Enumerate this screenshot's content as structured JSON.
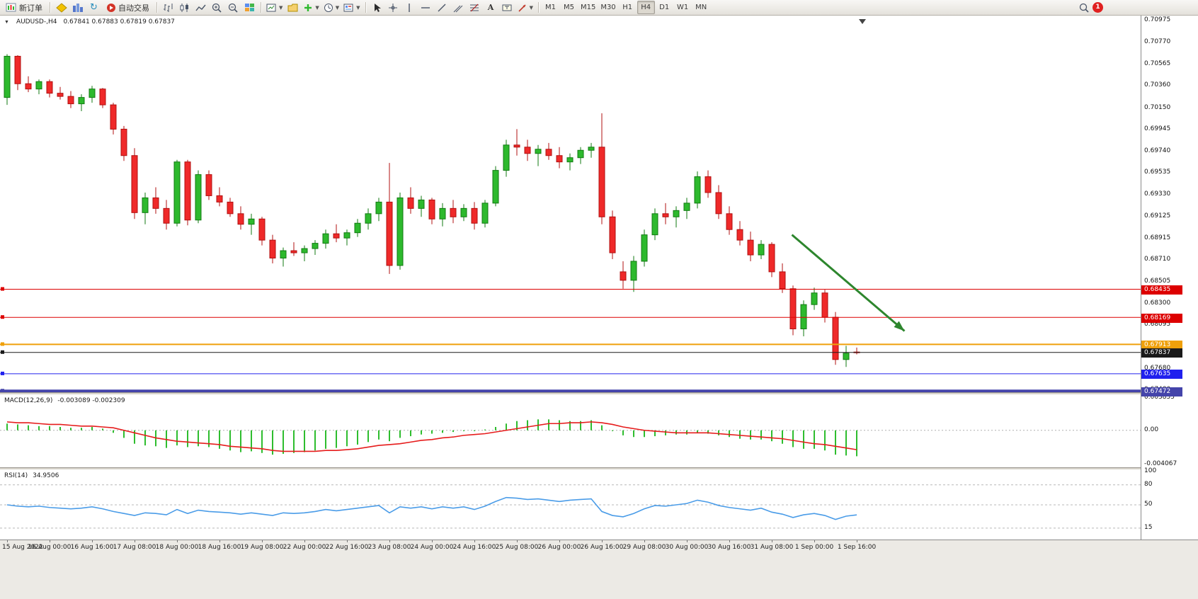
{
  "toolbar": {
    "new_order_label": "新订单",
    "autotrading_label": "自动交易",
    "timeframes": [
      "M1",
      "M5",
      "M15",
      "M30",
      "H1",
      "H4",
      "D1",
      "W1",
      "MN"
    ],
    "active_timeframe": "H4",
    "notification_count": "1"
  },
  "chart_window": {
    "symbol_period": "AUDUSD-,H4",
    "ohlc": "0.67841 0.67883 0.67819 0.67837",
    "macd_title": "MACD(12,26,9)",
    "macd_values": "-0.003089 -0.002309",
    "rsi_title": "RSI(14)",
    "rsi_value": "34.9506"
  },
  "chart_data": {
    "type": "candlestick",
    "symbol": "AUDUSD",
    "period": "H4",
    "x0": 10,
    "dx": 15,
    "label_every": 4,
    "ylim": [
      0.67467,
      0.70998
    ],
    "x_labels": [
      "15 Aug 2022",
      "16 Aug 00:00",
      "16 Aug 16:00",
      "17 Aug 08:00",
      "18 Aug 00:00",
      "18 Aug 16:00",
      "19 Aug 08:00",
      "22 Aug 00:00",
      "22 Aug 16:00",
      "23 Aug 08:00",
      "24 Aug 00:00",
      "24 Aug 16:00",
      "25 Aug 08:00",
      "26 Aug 00:00",
      "26 Aug 16:00",
      "29 Aug 08:00",
      "30 Aug 00:00",
      "30 Aug 16:00",
      "31 Aug 08:00",
      "1 Sep 00:00",
      "1 Sep 16:00"
    ],
    "price_ticks": [
      "0.70975",
      "0.70770",
      "0.70565",
      "0.70360",
      "0.70150",
      "0.69945",
      "0.69740",
      "0.69535",
      "0.69330",
      "0.69125",
      "0.68915",
      "0.68710",
      "0.68505",
      "0.68300",
      "0.68095",
      "0.67890",
      "0.67680",
      "0.67480"
    ],
    "candles": [
      [
        0.7025,
        0.7066,
        0.7018,
        0.7064
      ],
      [
        0.7064,
        0.7065,
        0.7032,
        0.7038
      ],
      [
        0.7038,
        0.7045,
        0.703,
        0.7033
      ],
      [
        0.7033,
        0.7042,
        0.7028,
        0.704
      ],
      [
        0.704,
        0.7042,
        0.7025,
        0.7029
      ],
      [
        0.7029,
        0.7035,
        0.7023,
        0.7026
      ],
      [
        0.7026,
        0.7031,
        0.7015,
        0.7019
      ],
      [
        0.7019,
        0.7028,
        0.7012,
        0.7025
      ],
      [
        0.7025,
        0.7036,
        0.702,
        0.7033
      ],
      [
        0.7033,
        0.7034,
        0.7015,
        0.7018
      ],
      [
        0.7018,
        0.702,
        0.699,
        0.6995
      ],
      [
        0.6995,
        0.6998,
        0.6965,
        0.697
      ],
      [
        0.697,
        0.6977,
        0.691,
        0.6916
      ],
      [
        0.6916,
        0.6935,
        0.6905,
        0.693
      ],
      [
        0.693,
        0.694,
        0.6915,
        0.692
      ],
      [
        0.692,
        0.6928,
        0.69,
        0.6906
      ],
      [
        0.6906,
        0.6966,
        0.6903,
        0.6964
      ],
      [
        0.6964,
        0.6966,
        0.6904,
        0.6909
      ],
      [
        0.6909,
        0.6956,
        0.6906,
        0.6952
      ],
      [
        0.6952,
        0.6956,
        0.6928,
        0.6932
      ],
      [
        0.6932,
        0.694,
        0.6922,
        0.6926
      ],
      [
        0.6926,
        0.693,
        0.6912,
        0.6915
      ],
      [
        0.6915,
        0.6922,
        0.69,
        0.6905
      ],
      [
        0.6905,
        0.6915,
        0.6895,
        0.691
      ],
      [
        0.691,
        0.6912,
        0.6885,
        0.689
      ],
      [
        0.689,
        0.6895,
        0.6868,
        0.6873
      ],
      [
        0.6873,
        0.6883,
        0.6865,
        0.688
      ],
      [
        0.688,
        0.6888,
        0.6875,
        0.6878
      ],
      [
        0.6878,
        0.6885,
        0.687,
        0.6882
      ],
      [
        0.6882,
        0.689,
        0.6876,
        0.6887
      ],
      [
        0.6887,
        0.69,
        0.6882,
        0.6896
      ],
      [
        0.6896,
        0.6905,
        0.6888,
        0.6892
      ],
      [
        0.6892,
        0.69,
        0.6885,
        0.6897
      ],
      [
        0.6897,
        0.691,
        0.6893,
        0.6906
      ],
      [
        0.6906,
        0.692,
        0.69,
        0.6915
      ],
      [
        0.6915,
        0.693,
        0.6908,
        0.6926
      ],
      [
        0.6926,
        0.6963,
        0.6858,
        0.6866
      ],
      [
        0.6866,
        0.6935,
        0.6862,
        0.693
      ],
      [
        0.693,
        0.694,
        0.6915,
        0.692
      ],
      [
        0.692,
        0.6932,
        0.6912,
        0.6928
      ],
      [
        0.6928,
        0.693,
        0.6905,
        0.691
      ],
      [
        0.691,
        0.6925,
        0.6903,
        0.692
      ],
      [
        0.692,
        0.6928,
        0.6906,
        0.6912
      ],
      [
        0.6912,
        0.6924,
        0.6908,
        0.692
      ],
      [
        0.692,
        0.6926,
        0.69,
        0.6906
      ],
      [
        0.6906,
        0.6928,
        0.6902,
        0.6925
      ],
      [
        0.6925,
        0.696,
        0.6922,
        0.6956
      ],
      [
        0.6956,
        0.6985,
        0.695,
        0.698
      ],
      [
        0.698,
        0.6995,
        0.697,
        0.6978
      ],
      [
        0.6978,
        0.6985,
        0.6965,
        0.6972
      ],
      [
        0.6972,
        0.698,
        0.696,
        0.6976
      ],
      [
        0.6976,
        0.6982,
        0.6966,
        0.697
      ],
      [
        0.697,
        0.6978,
        0.6958,
        0.6964
      ],
      [
        0.6964,
        0.6972,
        0.6956,
        0.6968
      ],
      [
        0.6968,
        0.6978,
        0.6962,
        0.6975
      ],
      [
        0.6975,
        0.6982,
        0.6968,
        0.6978
      ],
      [
        0.6978,
        0.701,
        0.6905,
        0.6912
      ],
      [
        0.6912,
        0.6918,
        0.6872,
        0.6878
      ],
      [
        0.686,
        0.687,
        0.6844,
        0.6852
      ],
      [
        0.6852,
        0.6875,
        0.6841,
        0.687
      ],
      [
        0.687,
        0.69,
        0.6865,
        0.6895
      ],
      [
        0.6895,
        0.692,
        0.689,
        0.6915
      ],
      [
        0.6915,
        0.6925,
        0.6905,
        0.6912
      ],
      [
        0.6912,
        0.6922,
        0.6902,
        0.6918
      ],
      [
        0.6918,
        0.693,
        0.691,
        0.6925
      ],
      [
        0.6925,
        0.6955,
        0.692,
        0.695
      ],
      [
        0.695,
        0.6956,
        0.693,
        0.6935
      ],
      [
        0.6935,
        0.6942,
        0.691,
        0.6915
      ],
      [
        0.6915,
        0.6922,
        0.6895,
        0.69
      ],
      [
        0.69,
        0.6908,
        0.6885,
        0.689
      ],
      [
        0.689,
        0.6898,
        0.687,
        0.6876
      ],
      [
        0.6876,
        0.689,
        0.6872,
        0.6886
      ],
      [
        0.6886,
        0.6888,
        0.6855,
        0.686
      ],
      [
        0.686,
        0.6868,
        0.684,
        0.6844
      ],
      [
        0.6844,
        0.6847,
        0.68,
        0.6806
      ],
      [
        0.6806,
        0.6833,
        0.6799,
        0.6829
      ],
      [
        0.6829,
        0.6845,
        0.6824,
        0.684
      ],
      [
        0.684,
        0.6843,
        0.6812,
        0.6817
      ],
      [
        0.6817,
        0.6822,
        0.6772,
        0.6777
      ],
      [
        0.6777,
        0.679,
        0.677,
        0.6783
      ],
      [
        0.67841,
        0.67883,
        0.67819,
        0.67837
      ]
    ],
    "colors": {
      "up": "#2db92d",
      "up_border": "#117a11",
      "down": "#ef2929",
      "down_border": "#b01010",
      "bg": "#ffffff"
    },
    "hlines": [
      {
        "price": 0.68435,
        "label": "0.68435",
        "color": "#dd0000",
        "width": 1
      },
      {
        "price": 0.68169,
        "label": "0.68169",
        "color": "#dd0000",
        "width": 1
      },
      {
        "price": 0.67913,
        "label": "0.67913",
        "color": "#efa00b",
        "width": 2
      },
      {
        "price": 0.67837,
        "label": "0.67837",
        "color": "#1a1a1a",
        "width": 1,
        "role": "current-price"
      },
      {
        "price": 0.67635,
        "label": "0.67635",
        "color": "#2020ee",
        "width": 1
      },
      {
        "price": 0.67472,
        "label": "0.67472",
        "color": "#4444aa",
        "width": 4
      }
    ],
    "current_price": 0.67837,
    "arrow": {
      "from": {
        "i": 73.9,
        "price": 0.6895
      },
      "to": {
        "i": 84.5,
        "price": 0.6804
      },
      "color": "#2d862d"
    },
    "macd": {
      "label": "MACD(12,26,9)",
      "value_main": -0.003089,
      "value_signal": -0.002309,
      "ylim": [
        -0.004067,
        0.003855
      ],
      "scale": [
        "0.003855",
        "0.00",
        "-0.004067"
      ],
      "colors": {
        "histogram": "#2ebd2e",
        "signal": "#e61c1c"
      },
      "main": [
        0.0008,
        0.0007,
        0.0006,
        0.0005,
        0.0005,
        0.0004,
        0.0003,
        0.0003,
        0.0004,
        0.0002,
        -0.0003,
        -0.0009,
        -0.0016,
        -0.0018,
        -0.0019,
        -0.0021,
        -0.0018,
        -0.002,
        -0.0019,
        -0.002,
        -0.0022,
        -0.0024,
        -0.0026,
        -0.0025,
        -0.0027,
        -0.0029,
        -0.0028,
        -0.0027,
        -0.0026,
        -0.0024,
        -0.0022,
        -0.0021,
        -0.0019,
        -0.0017,
        -0.0014,
        -0.0011,
        -0.0013,
        -0.0009,
        -0.0007,
        -0.0005,
        -0.0004,
        -0.0003,
        -0.0002,
        -0.0001,
        -0.0001,
        0.0001,
        0.0004,
        0.0008,
        0.0011,
        0.0012,
        0.0013,
        0.0013,
        0.0012,
        0.0011,
        0.0011,
        0.0012,
        0.0006,
        -0.0001,
        -0.0006,
        -0.0008,
        -0.0008,
        -0.0007,
        -0.0006,
        -0.0005,
        -0.0005,
        -0.0003,
        -0.0004,
        -0.0006,
        -0.0008,
        -0.001,
        -0.0011,
        -0.0011,
        -0.0013,
        -0.0016,
        -0.002,
        -0.0022,
        -0.0022,
        -0.0024,
        -0.0029,
        -0.003,
        -0.003089
      ],
      "signal": [
        0.001,
        0.0009,
        0.0009,
        0.0008,
        0.0007,
        0.0007,
        0.0006,
        0.0005,
        0.0005,
        0.0004,
        0.0003,
        0.0,
        -0.0003,
        -0.0006,
        -0.0009,
        -0.0011,
        -0.0013,
        -0.0014,
        -0.0015,
        -0.0016,
        -0.0017,
        -0.0019,
        -0.002,
        -0.0021,
        -0.0022,
        -0.0024,
        -0.0025,
        -0.0025,
        -0.0025,
        -0.0025,
        -0.0024,
        -0.0024,
        -0.0023,
        -0.0022,
        -0.002,
        -0.0018,
        -0.0017,
        -0.0016,
        -0.0014,
        -0.0012,
        -0.0011,
        -0.0009,
        -0.0008,
        -0.0006,
        -0.0005,
        -0.0004,
        -0.0002,
        0.0,
        0.0002,
        0.0004,
        0.0006,
        0.0008,
        0.0008,
        0.0009,
        0.0009,
        0.001,
        0.0009,
        0.0007,
        0.0004,
        0.0002,
        0.0,
        -0.0001,
        -0.0002,
        -0.0003,
        -0.0003,
        -0.0003,
        -0.0003,
        -0.0004,
        -0.0005,
        -0.0006,
        -0.0007,
        -0.0008,
        -0.0009,
        -0.001,
        -0.0012,
        -0.0014,
        -0.0016,
        -0.0017,
        -0.0019,
        -0.0021,
        -0.002309
      ]
    },
    "rsi": {
      "label": "RSI(14)",
      "value": 34.9506,
      "color": "#4a9ce8",
      "levels": [
        80,
        50,
        15
      ],
      "scale_labels": [
        "100",
        "80",
        "50",
        "15"
      ],
      "scale_values": [
        100,
        80,
        50,
        15
      ],
      "values": [
        50,
        48,
        47,
        48,
        46,
        45,
        44,
        45,
        47,
        44,
        40,
        37,
        34,
        38,
        37,
        35,
        43,
        37,
        42,
        40,
        39,
        38,
        36,
        38,
        36,
        34,
        38,
        37,
        38,
        40,
        43,
        41,
        43,
        45,
        47,
        49,
        38,
        47,
        45,
        47,
        44,
        47,
        45,
        47,
        43,
        48,
        55,
        61,
        60,
        58,
        59,
        57,
        55,
        57,
        58,
        59,
        40,
        34,
        32,
        37,
        44,
        49,
        48,
        50,
        52,
        57,
        54,
        49,
        46,
        44,
        42,
        45,
        39,
        36,
        31,
        35,
        37,
        34,
        28,
        33,
        34.95
      ]
    }
  }
}
